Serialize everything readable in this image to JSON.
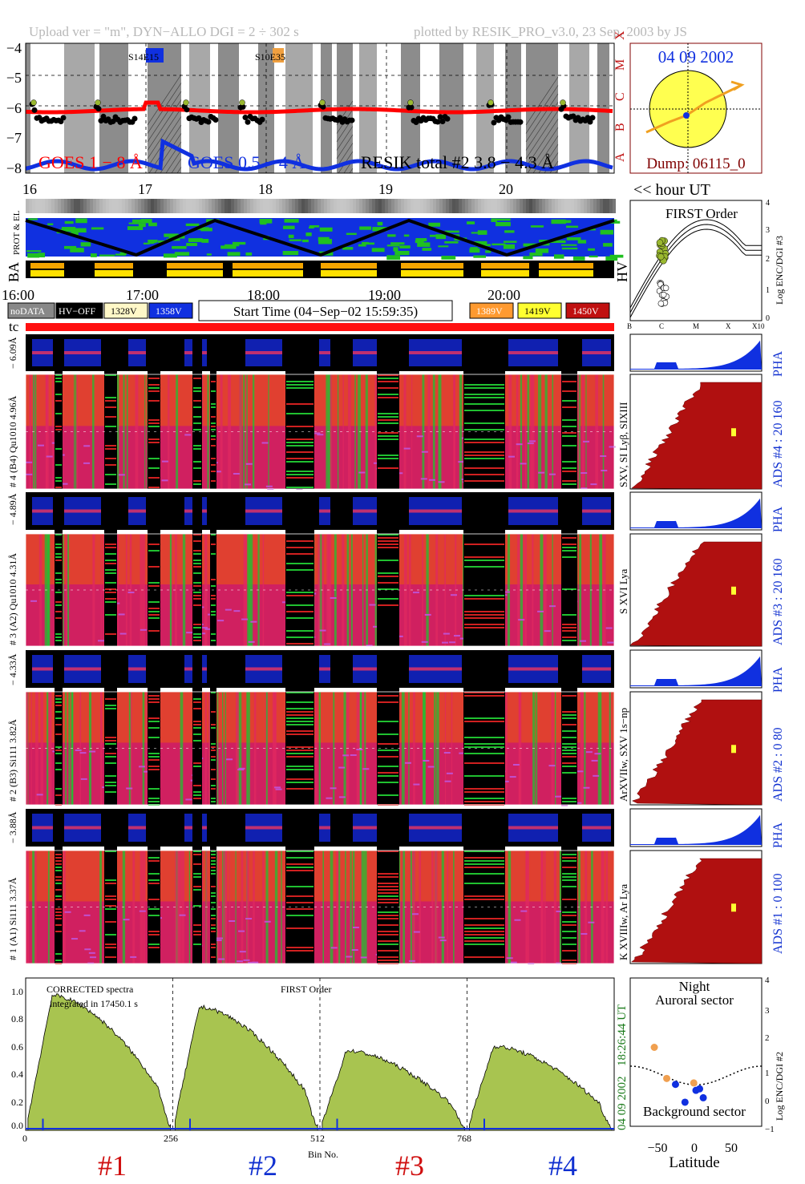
{
  "header": {
    "left": "Upload ver = \"m\", DYN−ALLO DGI =   2 ÷ 302 s",
    "right": "plotted by RESIK_PRO_v3.0, 23 Sep. 2003 by JS"
  },
  "goes_panel": {
    "y_ticks": [
      "−4",
      "−5",
      "−6",
      "−7",
      "−8"
    ],
    "class_labels": [
      "X",
      "M",
      "C",
      "B",
      "A"
    ],
    "flare_labels": [
      "S14E15",
      "S10E35"
    ],
    "goes_long": "GOES 1 − 8 Å",
    "goes_short": "GOES 0.5 − 4 Å",
    "resik": "RESIK total #2  3.8 − 4.3 Å",
    "colors": {
      "long": "#ff0000",
      "short": "#1030e0",
      "resik": "#000000",
      "resik_hi": "#9ab830"
    }
  },
  "sun_panel": {
    "date": "04 09 2002",
    "dump": "Dump: 06115_0"
  },
  "hour_axis": {
    "labels": [
      "16",
      "17",
      "18",
      "19",
      "20"
    ],
    "suffix": "<< hour UT"
  },
  "status_rows": {
    "prot": "PROT & EL",
    "ba": "BA",
    "hv": "HV"
  },
  "time_axis": {
    "labels": [
      "16:00",
      "17:00",
      "18:00",
      "19:00",
      "20:00"
    ]
  },
  "legend": {
    "items": [
      {
        "label": "noDATA",
        "color": "#888888"
      },
      {
        "label": "HV−OFF",
        "color": "#000000"
      },
      {
        "label": "1328V",
        "color": "#fff8c8"
      },
      {
        "label": "1358V",
        "color": "#1030e0"
      },
      {
        "label": "1389V",
        "color": "#ff9a30"
      },
      {
        "label": "1419V",
        "color": "#ffff30"
      },
      {
        "label": "1450V",
        "color": "#c01010"
      }
    ],
    "start_time": "Start Time (04−Sep−02 15:59:35)"
  },
  "tc_label": "tc",
  "first_order_panel": {
    "title": "FIRST Order",
    "ylabel": "Log ENC/DGI #3",
    "y_ticks": [
      "0",
      "1",
      "2",
      "3",
      "4"
    ],
    "x_ticks": [
      "B",
      "C",
      "M",
      "X",
      "X10"
    ]
  },
  "channels": [
    {
      "pha_label": "− 6.09Å",
      "main_label": "# 4 (B4) Qu1010 4.96Å",
      "right_label": "SXV, SI Lyβ, SIXIII",
      "ads": "ADS #4 :   20 160",
      "pha": "PHA"
    },
    {
      "pha_label": "− 4.89Å",
      "main_label": "# 3 (A2) Qu1010 4.31Å",
      "right_label": "S XVI Lya",
      "ads": "ADS #3 :   20 160",
      "pha": "PHA"
    },
    {
      "pha_label": "− 4.33Å",
      "main_label": "# 2 (B3) Si111 3.82Å",
      "right_label": "ArXVIIw, SXV 1s−np",
      "ads": "ADS #2 :   0  80",
      "pha": "PHA"
    },
    {
      "pha_label": "− 3.88Å",
      "main_label": "# 1 (A1) Si111 3.37Å",
      "right_label": "K XVIIIw, Ar Lya",
      "ads": "ADS #1 :   0  100",
      "pha": "PHA"
    }
  ],
  "spectrum_panel": {
    "title": "CORRECTED spectra",
    "integrated": "integrated in 17450.1 s",
    "order": "FIRST Order",
    "time": "18:26:44 UT",
    "date": "04 09 2002",
    "xlabel": "Bin No.",
    "x_ticks": [
      "0",
      "256",
      "512",
      "768"
    ],
    "y_ticks": [
      "0.0",
      "0.2",
      "0.4",
      "0.6",
      "0.8",
      "1.0"
    ],
    "channels": [
      "#1",
      "#2",
      "#3",
      "#4"
    ],
    "channel_colors": [
      "#d01010",
      "#1030d0",
      "#d01010",
      "#1030d0"
    ]
  },
  "latitude_panel": {
    "title1": "Night",
    "title2": "Auroral sector",
    "bottom": "Background sector",
    "xlabel": "Latitude",
    "ylabel": "Log ENC/DGI #2",
    "x_ticks": [
      "−50",
      "0",
      "50"
    ],
    "y_ticks": [
      "−1",
      "0",
      "1",
      "2",
      "3",
      "4"
    ]
  },
  "chart_data": {
    "type": "line",
    "spectrum": {
      "xlim": [
        0,
        1024
      ],
      "ylim": [
        0,
        1.05
      ],
      "segments": [
        {
          "name": "#1",
          "start": 0,
          "end": 256,
          "peak": 0.93
        },
        {
          "name": "#2",
          "start": 256,
          "end": 512,
          "peak": 0.85
        },
        {
          "name": "#3",
          "start": 512,
          "end": 768,
          "peak": 0.55
        },
        {
          "name": "#4",
          "start": 768,
          "end": 1024,
          "peak": 0.58
        }
      ]
    },
    "latitude_points": {
      "orange": [
        [
          -57,
          1.5
        ],
        [
          -40,
          0.45
        ],
        [
          -3,
          0.3
        ]
      ],
      "blue": [
        [
          -28,
          0.25
        ],
        [
          -15,
          -0.35
        ],
        [
          0,
          0.05
        ],
        [
          5,
          0.1
        ],
        [
          10,
          -0.2
        ]
      ]
    },
    "goes": {
      "ylim": [
        -8.2,
        -3.8
      ]
    }
  }
}
